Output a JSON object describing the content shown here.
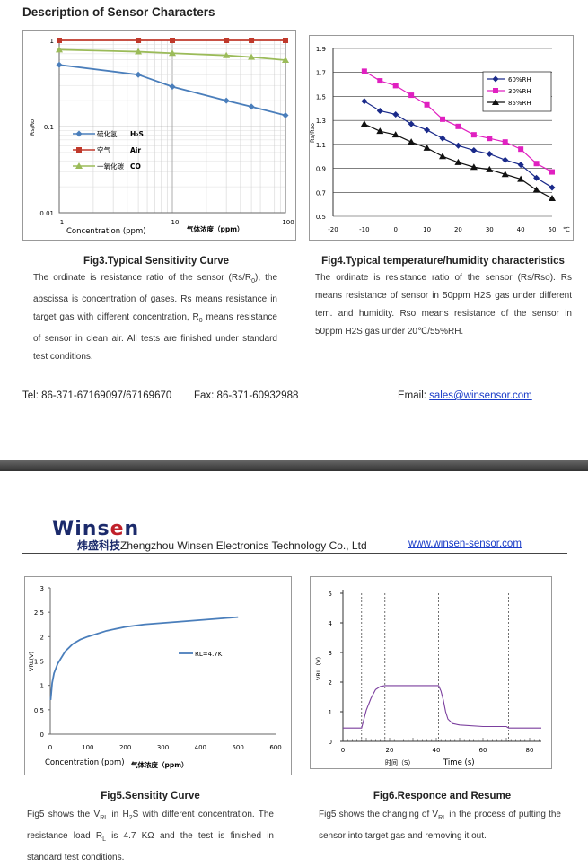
{
  "page": {
    "section_title": "Description of Sensor Characters",
    "contact": {
      "tel": "Tel: 86-371-67169097/67169670",
      "fax": "Fax: 86-371-60932988",
      "email_label": "Email: ",
      "email": "sales@winsensor.com"
    },
    "company": {
      "logo_a": "Wins",
      "logo_o": "e",
      "logo_b": "n",
      "name_cn": "炜盛科技",
      "name_en": "Zhengzhou Winsen Electronics Technology Co., Ltd",
      "url": "www.winsen-sensor.com"
    }
  },
  "fig3": {
    "caption": "Fig3.Typical Sensitivity Curve",
    "text_1": "The ordinate is resistance ratio of the sensor (Rs/R",
    "text_1_sub": "0",
    "text_2": "), the abscissa is concentration of gases. Rs means resistance in target gas with different concentration, R",
    "text_2_sub": "0",
    "text_3": " means resistance of sensor in clean air. All tests are finished under standard test conditions.",
    "chart_data": {
      "type": "line",
      "x_scale": "log",
      "y_scale": "log",
      "xlim": [
        1,
        100
      ],
      "ylim": [
        0.01,
        1
      ],
      "xlabel": "Concentration (ppm)",
      "xlabel_cn": "气体浓度（ppm）",
      "ylabel": "Rs/Ro",
      "x_ticks": [
        "1",
        "10",
        "100"
      ],
      "y_ticks": [
        "1",
        "0.1",
        "0.01"
      ],
      "legend_position": "left",
      "series": [
        {
          "name_cn": "硫化氢",
          "name": "H₂S",
          "color": "#4a7ebb",
          "marker": "diamond",
          "x": [
            1,
            5,
            10,
            30,
            50,
            100
          ],
          "y": [
            0.52,
            0.4,
            0.29,
            0.2,
            0.17,
            0.135
          ]
        },
        {
          "name_cn": "空气",
          "name": "Air",
          "color": "#c0392b",
          "marker": "square",
          "x": [
            1,
            5,
            10,
            30,
            50,
            100
          ],
          "y": [
            1.0,
            1.0,
            1.0,
            1.0,
            1.0,
            1.0
          ]
        },
        {
          "name_cn": "一氧化碳",
          "name": "CO",
          "color": "#9bbb59",
          "marker": "triangle",
          "x": [
            1,
            5,
            10,
            30,
            50,
            100
          ],
          "y": [
            0.78,
            0.74,
            0.71,
            0.67,
            0.64,
            0.59
          ]
        }
      ]
    }
  },
  "fig4": {
    "caption": "Fig4.Typical temperature/humidity characteristics",
    "text": "The ordinate is resistance ratio of the sensor (Rs/Rso). Rs means resistance of sensor in 50ppm H2S gas under different tem. and humidity. Rso means resistance of the sensor in 50ppm H2S gas under 20℃/55%RH.",
    "chart_data": {
      "type": "line",
      "xlim": [
        -20,
        50
      ],
      "ylim": [
        0.5,
        1.9
      ],
      "ylabel": "Rs/Rso",
      "x_ticks": [
        "-20",
        "-10",
        "0",
        "10",
        "20",
        "30",
        "40",
        "50"
      ],
      "x_unit": "℃",
      "y_ticks": [
        "1.9",
        "1.7",
        "1.5",
        "1.3",
        "1.1",
        "0.9",
        "0.7",
        "0.5"
      ],
      "legend_position": "top-right",
      "series": [
        {
          "name": "60%RH",
          "color": "#1a2a8a",
          "marker": "diamond",
          "x": [
            -10,
            -5,
            0,
            5,
            10,
            15,
            20,
            25,
            30,
            35,
            40,
            45,
            50
          ],
          "y": [
            1.46,
            1.38,
            1.35,
            1.27,
            1.22,
            1.15,
            1.09,
            1.05,
            1.02,
            0.97,
            0.93,
            0.82,
            0.74
          ]
        },
        {
          "name": "30%RH",
          "color": "#e020c0",
          "marker": "square",
          "x": [
            -10,
            -5,
            0,
            5,
            10,
            15,
            20,
            25,
            30,
            35,
            40,
            45,
            50
          ],
          "y": [
            1.71,
            1.63,
            1.59,
            1.51,
            1.43,
            1.31,
            1.25,
            1.18,
            1.15,
            1.12,
            1.06,
            0.94,
            0.87
          ]
        },
        {
          "name": "85%RH",
          "color": "#111111",
          "marker": "triangle",
          "x": [
            -10,
            -5,
            0,
            5,
            10,
            15,
            20,
            25,
            30,
            35,
            40,
            45,
            50
          ],
          "y": [
            1.27,
            1.21,
            1.18,
            1.12,
            1.07,
            1.0,
            0.95,
            0.91,
            0.89,
            0.85,
            0.81,
            0.72,
            0.65
          ]
        }
      ]
    }
  },
  "fig5": {
    "caption": "Fig5.Sensitity Curve",
    "text_1": "Fig5 shows the V",
    "text_1_sub": "RL",
    "text_2": " in H",
    "text_2_sub": "2",
    "text_3": "S with different concentration. The resistance load R",
    "text_3_sub": "L",
    "text_4": " is 4.7 KΩ and the test is finished in standard test conditions.",
    "chart_data": {
      "type": "line",
      "xlim": [
        0,
        600
      ],
      "ylim": [
        0,
        3
      ],
      "xlabel": "Concentration (ppm)",
      "xlabel_cn": "气体浓度（ppm）",
      "ylabel": "VRL(V)",
      "x_ticks": [
        "0",
        "100",
        "200",
        "300",
        "400",
        "500",
        "600"
      ],
      "y_ticks": [
        "0",
        "0.5",
        "1",
        "1.5",
        "2",
        "2.5",
        "3"
      ],
      "legend_position": "center-right",
      "series": [
        {
          "name": "RL=4.7K",
          "color": "#4a7ebb",
          "x": [
            1,
            5,
            10,
            20,
            40,
            60,
            80,
            100,
            150,
            200,
            250,
            300,
            350,
            400,
            450,
            500
          ],
          "y": [
            0.7,
            1.05,
            1.25,
            1.45,
            1.7,
            1.85,
            1.94,
            2.0,
            2.12,
            2.2,
            2.25,
            2.28,
            2.31,
            2.34,
            2.37,
            2.4
          ]
        }
      ]
    }
  },
  "fig6": {
    "caption": "Fig6.Responce and Resume",
    "text_1": "Fig5 shows the changing of V",
    "text_1_sub": "RL",
    "text_2": " in the process of putting the sensor into target gas and removing it out.",
    "chart_data": {
      "type": "line",
      "xlim": [
        0,
        85
      ],
      "ylim": [
        0,
        5
      ],
      "xlabel": "Time (s)",
      "xlabel_cn": "时间（S）",
      "ylabel": "VRL（V）",
      "x_ticks": [
        "0",
        "20",
        "40",
        "60",
        "80"
      ],
      "y_ticks": [
        "0",
        "1",
        "2",
        "3",
        "4",
        "5"
      ],
      "markers_x": [
        8,
        18,
        41,
        71
      ],
      "series": [
        {
          "name": "",
          "color": "#7b3f9e",
          "x": [
            0,
            8,
            9,
            10,
            12,
            14,
            16,
            18,
            41,
            42,
            43,
            44,
            45,
            47,
            50,
            60,
            70,
            71,
            85
          ],
          "y": [
            0.45,
            0.45,
            0.75,
            1.05,
            1.45,
            1.75,
            1.85,
            1.88,
            1.88,
            1.7,
            1.4,
            1.0,
            0.75,
            0.6,
            0.55,
            0.5,
            0.5,
            0.45,
            0.45
          ]
        }
      ]
    }
  }
}
